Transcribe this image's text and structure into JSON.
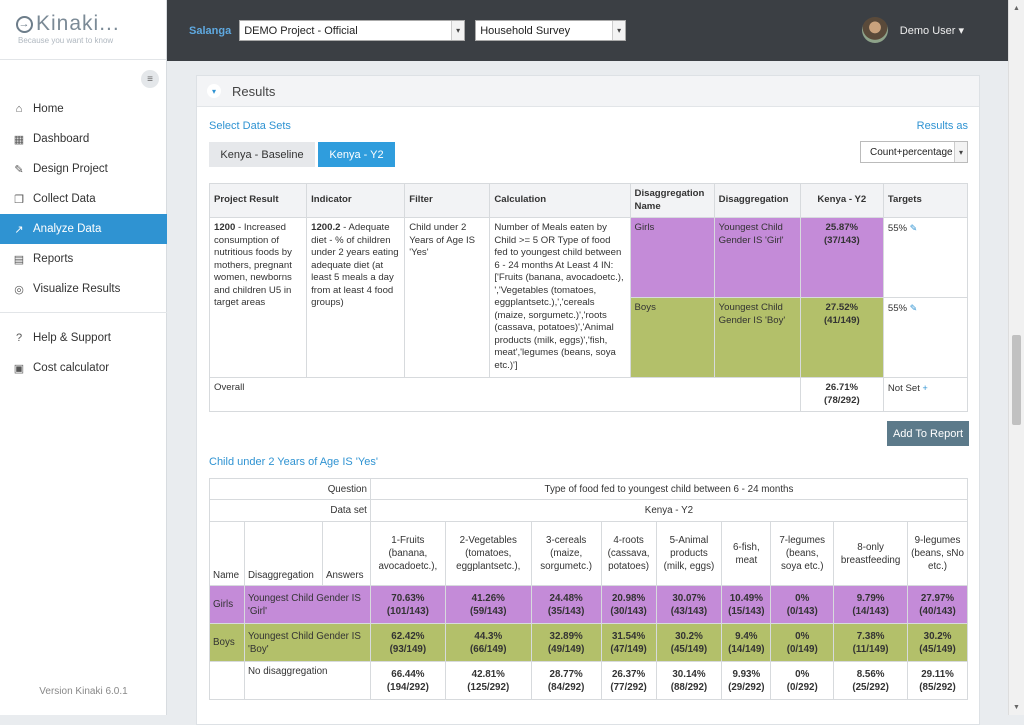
{
  "brand": {
    "name": "Kinaki...",
    "tagline": "Because you want to know",
    "logo_glyph": "→"
  },
  "sidebar": {
    "collapse_glyph": "≡",
    "items": [
      {
        "icon": "home-icon",
        "glyph": "⌂",
        "label": "Home"
      },
      {
        "icon": "dashboard-icon",
        "glyph": "▦",
        "label": "Dashboard"
      },
      {
        "icon": "pencil-icon",
        "glyph": "✎",
        "label": "Design Project"
      },
      {
        "icon": "stack-icon",
        "glyph": "❐",
        "label": "Collect Data"
      },
      {
        "icon": "chart-icon",
        "glyph": "↗",
        "label": "Analyze Data"
      },
      {
        "icon": "document-icon",
        "glyph": "▤",
        "label": "Reports"
      },
      {
        "icon": "target-icon",
        "glyph": "◎",
        "label": "Visualize Results"
      }
    ],
    "secondary": [
      {
        "icon": "help-icon",
        "glyph": "?",
        "label": "Help & Support"
      },
      {
        "icon": "calculator-icon",
        "glyph": "▣",
        "label": "Cost calculator"
      }
    ],
    "version": "Version Kinaki 6.0.1"
  },
  "topbar": {
    "org": "Salanga",
    "project": "DEMO Project - Official",
    "survey": "Household Survey",
    "user": "Demo User ▾",
    "select_arrow": "▾"
  },
  "results": {
    "title": "Results",
    "caret": "▾",
    "select_label": "Select Data Sets",
    "results_as_label": "Results as",
    "results_as_value": "Count+percentage",
    "datasets": [
      "Kenya - Baseline",
      "Kenya - Y2"
    ],
    "table": {
      "headers": [
        "Project Result",
        "Indicator",
        "Filter",
        "Calculation",
        "Disaggregation Name",
        "Disaggregation",
        "Kenya - Y2",
        "Targets"
      ],
      "project_result_code": "1200",
      "project_result_text": " - Increased consumption of nutritious foods by mothers, pregnant women, newborns and children U5 in target areas",
      "indicator_code": "1200.2",
      "indicator_text": " - Adequate diet - % of children under 2 years eating adequate diet (at least 5 meals a day from at least 4 food groups)",
      "filter": "Child under 2 Years of Age IS 'Yes'",
      "calculation": "Number of Meals eaten by Child >= 5 OR Type of food fed to youngest child between 6 - 24 months At Least 4 IN: ['Fruits (banana, avocadoetc.), ','Vegetables (tomatoes, eggplantsetc.),','cereals (maize, sorgumetc.)','roots (cassava, potatoes)','Animal products (milk, eggs)','fish, meat','legumes (beans, soya etc.)']",
      "rows": [
        {
          "name": "Girls",
          "disagg": "Youngest Child Gender IS 'Girl'",
          "pct": "25.87%",
          "count": "(37/143)",
          "target": "55%",
          "edit": "✎"
        },
        {
          "name": "Boys",
          "disagg": "Youngest Child Gender IS 'Boy'",
          "pct": "27.52%",
          "count": "(41/149)",
          "target": "55%",
          "edit": "✎"
        }
      ],
      "overall": {
        "label": "Overall",
        "pct": "26.71%",
        "count": "(78/292)",
        "target": "Not Set",
        "add": "+"
      }
    },
    "add_to_report": "Add To Report",
    "filter_link": "Child under 2 Years of Age IS 'Yes'"
  },
  "detail": {
    "question_label": "Question",
    "question": "Type of food fed to youngest child between 6 - 24 months",
    "dataset_label": "Data set",
    "dataset": "Kenya - Y2",
    "col_name": "Name",
    "col_disagg": "Disaggregation",
    "col_answers": "Answers",
    "answers": [
      "1-Fruits (banana, avocadoetc.),",
      "2-Vegetables (tomatoes, eggplantsetc.),",
      "3-cereals (maize, sorgumetc.)",
      "4-roots (cassava, potatoes)",
      "5-Animal products (milk, eggs)",
      "6-fish, meat",
      "7-legumes (beans, soya etc.)",
      "8-only breastfeeding",
      "9-legumes (beans, sNo etc.)"
    ],
    "rows": [
      {
        "name": "Girls",
        "disagg": "Youngest Child Gender IS 'Girl'",
        "pct": [
          "70.63%",
          "41.26%",
          "24.48%",
          "20.98%",
          "30.07%",
          "10.49%",
          "0%",
          "9.79%",
          "27.97%"
        ],
        "cnt": [
          "(101/143)",
          "(59/143)",
          "(35/143)",
          "(30/143)",
          "(43/143)",
          "(15/143)",
          "(0/143)",
          "(14/143)",
          "(40/143)"
        ]
      },
      {
        "name": "Boys",
        "disagg": "Youngest Child Gender IS 'Boy'",
        "pct": [
          "62.42%",
          "44.3%",
          "32.89%",
          "31.54%",
          "30.2%",
          "9.4%",
          "0%",
          "7.38%",
          "30.2%"
        ],
        "cnt": [
          "(93/149)",
          "(66/149)",
          "(49/149)",
          "(47/149)",
          "(45/149)",
          "(14/149)",
          "(0/149)",
          "(11/149)",
          "(45/149)"
        ]
      },
      {
        "name": "",
        "disagg": "No disaggregation",
        "pct": [
          "66.44%",
          "42.81%",
          "28.77%",
          "26.37%",
          "30.14%",
          "9.93%",
          "0%",
          "8.56%",
          "29.11%"
        ],
        "cnt": [
          "(194/292)",
          "(125/292)",
          "(84/292)",
          "(77/292)",
          "(88/292)",
          "(29/292)",
          "(0/292)",
          "(25/292)",
          "(85/292)"
        ]
      }
    ]
  },
  "scrollbar": {
    "up": "▲",
    "down": "▼"
  },
  "colors": {
    "accent": "#2f93d2",
    "girls": "#c48bd8",
    "boys": "#b3c06a",
    "topbar": "#3b3f44"
  }
}
